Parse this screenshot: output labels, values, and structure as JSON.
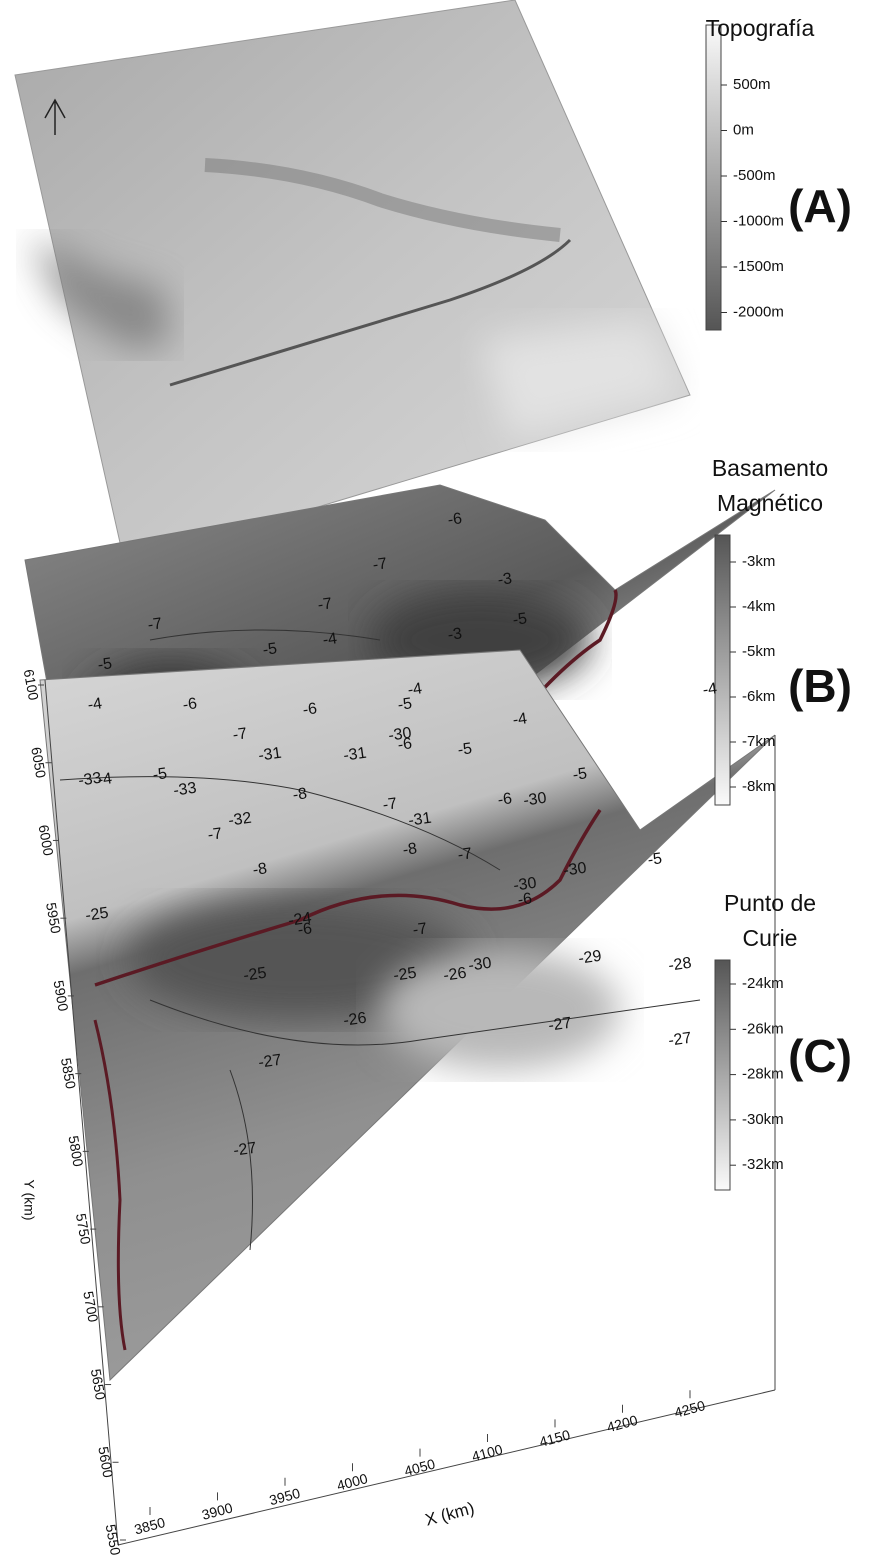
{
  "panels": [
    {
      "letter": "(A)",
      "title_lines": [
        "Topografía"
      ],
      "colorbar_ticks": [
        "500m",
        "0m",
        "-500m",
        "-1000m",
        "-1500m",
        "-2000m"
      ]
    },
    {
      "letter": "(B)",
      "title_lines": [
        "Basamento",
        "Magnético"
      ],
      "colorbar_ticks": [
        "-3km",
        "-4km",
        "-5km",
        "-6km",
        "-7km",
        "-8km"
      ],
      "contour_labels": [
        "-6",
        "-7",
        "-7",
        "-7",
        "-3",
        "-3",
        "-5",
        "-5",
        "-4",
        "-4",
        "-5",
        "-4",
        "-4",
        "-6",
        "-7",
        "-6",
        "-6",
        "-5",
        "-4",
        "-7",
        "-6",
        "-5",
        "-8",
        "-8",
        "-7",
        "-6",
        "-5",
        "-6",
        "-7",
        "-8",
        "-7",
        "-5",
        "-4",
        "-5"
      ]
    },
    {
      "letter": "(C)",
      "title_lines": [
        "Punto de",
        "Curie"
      ],
      "colorbar_ticks": [
        "-24km",
        "-26km",
        "-28km",
        "-30km",
        "-32km"
      ],
      "contour_labels": [
        "-33",
        "-33",
        "-32",
        "-31",
        "-31",
        "-31",
        "-30",
        "-30",
        "-30",
        "-30",
        "-30",
        "-25",
        "-24",
        "-25",
        "-25",
        "-26",
        "-26",
        "-29",
        "-28",
        "-27",
        "-27",
        "-27",
        "-27"
      ]
    }
  ],
  "axes": {
    "x_label": "X (km)",
    "x_ticks": [
      3850,
      3900,
      3950,
      4000,
      4050,
      4100,
      4150,
      4200,
      4250
    ],
    "y_label": "Y (km)",
    "y_ticks": [
      5550,
      5600,
      5650,
      5700,
      5750,
      5800,
      5850,
      5900,
      5950,
      6000,
      6050,
      6100
    ]
  }
}
